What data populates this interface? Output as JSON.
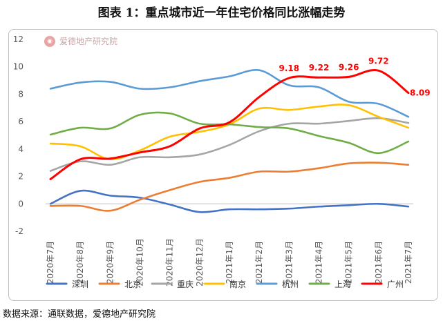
{
  "title": "图表 1：重点城市近一年住宅价格同比涨幅走势",
  "watermark": "爱德地产研究院",
  "source": "数据来源：通联数据，爱德地产研究院",
  "colors": {
    "深圳": "#4472c4",
    "北京": "#ed7d31",
    "重庆": "#a5a5a5",
    "南京": "#ffc000",
    "杭州": "#5b9bd5",
    "上海": "#70ad47",
    "广州": "#ff0000"
  },
  "chart_data": {
    "type": "line",
    "categories": [
      "2020年7月",
      "2020年8月",
      "2020年9月",
      "2020年10月",
      "2020年11月",
      "2020年12月",
      "2021年1月",
      "2021年2月",
      "2021年3月",
      "2021年4月",
      "2021年5月",
      "2021年6月",
      "2021年7月"
    ],
    "ylim": [
      -2,
      12
    ],
    "yticks": [
      -2,
      0,
      2,
      4,
      6,
      8,
      10,
      12
    ],
    "grid": false,
    "legend": "bottom",
    "series": [
      {
        "name": "深圳",
        "values": [
          0.0,
          0.95,
          0.6,
          0.45,
          -0.05,
          -0.6,
          -0.4,
          -0.4,
          -0.35,
          -0.2,
          -0.1,
          0.0,
          -0.2
        ]
      },
      {
        "name": "北京",
        "values": [
          -0.15,
          -0.15,
          -0.5,
          0.3,
          1.0,
          1.6,
          1.9,
          2.35,
          2.35,
          2.6,
          2.95,
          3.0,
          2.85
        ]
      },
      {
        "name": "重庆",
        "values": [
          2.4,
          3.1,
          2.85,
          3.4,
          3.4,
          3.6,
          4.3,
          5.3,
          5.85,
          5.85,
          6.05,
          6.25,
          5.9
        ]
      },
      {
        "name": "南京",
        "values": [
          4.4,
          4.2,
          3.25,
          3.9,
          4.9,
          5.25,
          5.8,
          6.95,
          6.85,
          7.1,
          7.2,
          6.35,
          5.55
        ]
      },
      {
        "name": "杭州",
        "values": [
          8.4,
          8.85,
          8.9,
          8.4,
          8.5,
          8.95,
          9.3,
          9.75,
          8.65,
          8.5,
          7.45,
          7.3,
          6.35
        ]
      },
      {
        "name": "上海",
        "values": [
          5.05,
          5.55,
          5.5,
          6.5,
          6.6,
          5.85,
          5.8,
          5.6,
          5.5,
          4.95,
          4.45,
          3.7,
          4.55
        ]
      },
      {
        "name": "广州",
        "values": [
          1.8,
          3.25,
          3.3,
          3.75,
          4.2,
          5.5,
          5.95,
          7.8,
          9.18,
          9.22,
          9.26,
          9.72,
          8.09
        ]
      }
    ],
    "data_labels": [
      {
        "series": "广州",
        "index": 8,
        "text": "9.18"
      },
      {
        "series": "广州",
        "index": 9,
        "text": "9.22"
      },
      {
        "series": "广州",
        "index": 10,
        "text": "9.26"
      },
      {
        "series": "广州",
        "index": 11,
        "text": "9.72"
      },
      {
        "series": "广州",
        "index": 12,
        "text": "8.09"
      }
    ]
  }
}
